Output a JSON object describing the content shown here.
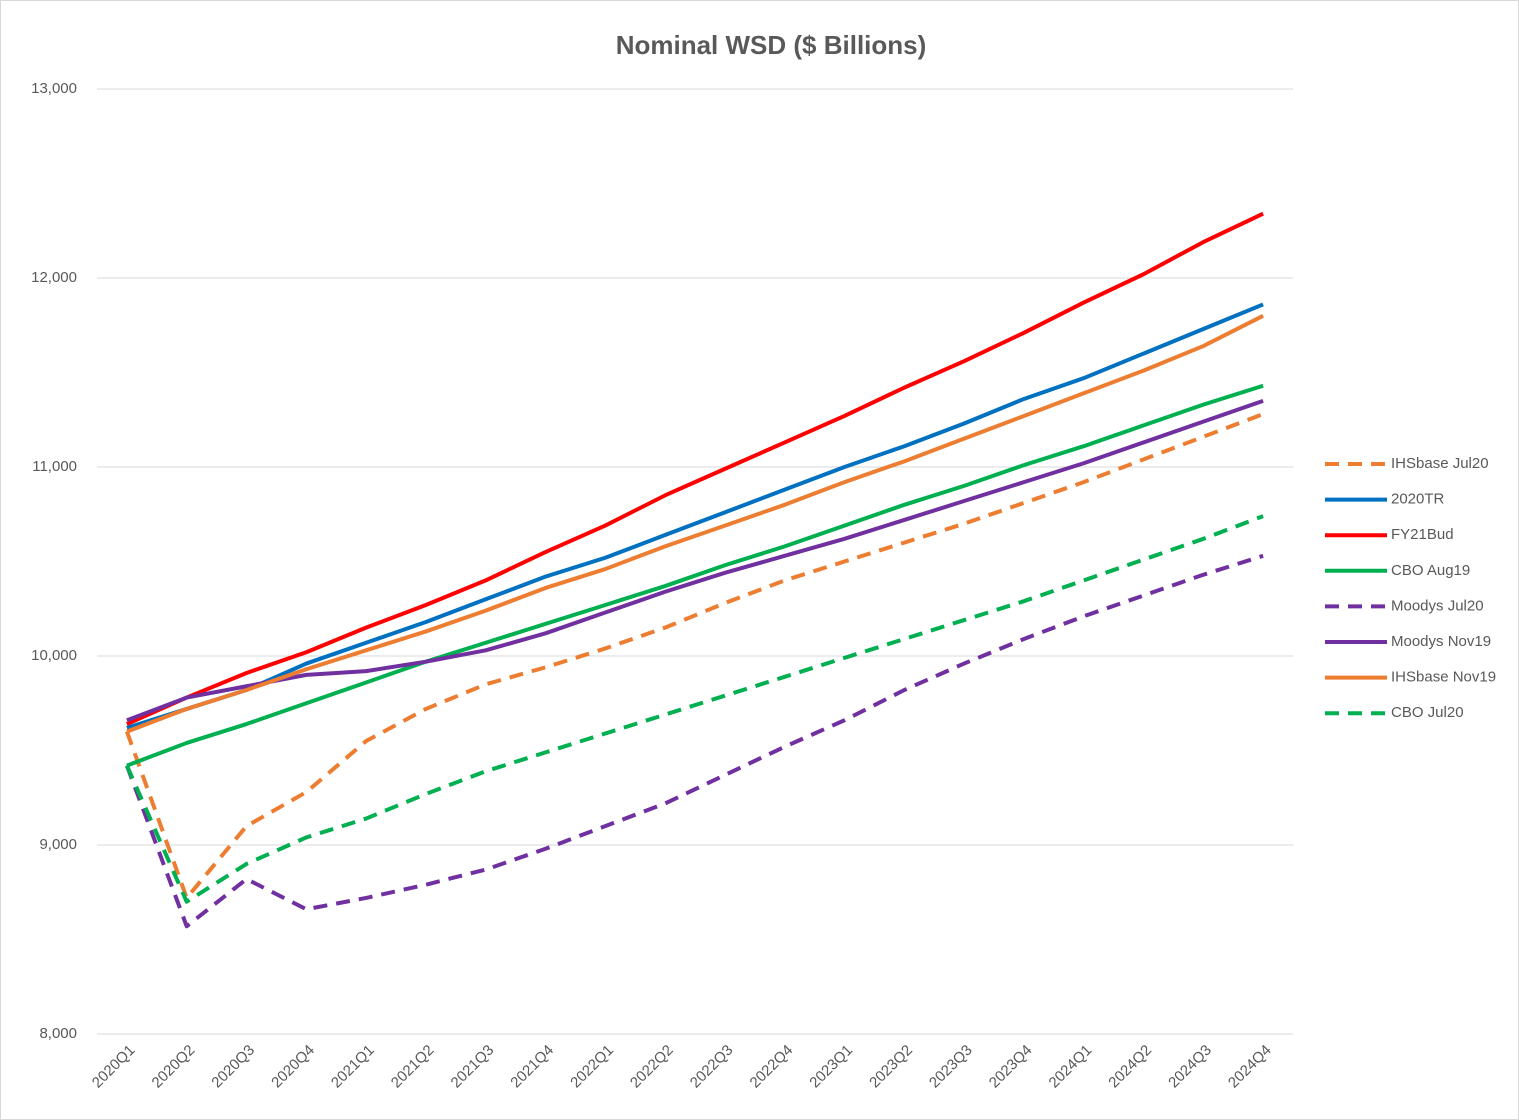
{
  "chart_data": {
    "type": "line",
    "title": "Nominal WSD ($ Billions)",
    "categories": [
      "2020Q1",
      "2020Q2",
      "2020Q3",
      "2020Q4",
      "2021Q1",
      "2021Q2",
      "2021Q3",
      "2021Q4",
      "2022Q1",
      "2022Q2",
      "2022Q3",
      "2022Q4",
      "2023Q1",
      "2023Q2",
      "2023Q3",
      "2023Q4",
      "2024Q1",
      "2024Q2",
      "2024Q3",
      "2024Q4"
    ],
    "series": [
      {
        "name": "IHSbase Jul20",
        "color": "#ED7D31",
        "dashed": true,
        "values": [
          9600,
          8720,
          9100,
          9280,
          9550,
          9720,
          9850,
          9940,
          10040,
          10150,
          10280,
          10400,
          10500,
          10600,
          10700,
          10810,
          10920,
          11040,
          11160,
          11280
        ]
      },
      {
        "name": "2020TR",
        "color": "#0070C0",
        "dashed": false,
        "values": [
          9620,
          9720,
          9820,
          9960,
          10070,
          10180,
          10300,
          10420,
          10520,
          10640,
          10760,
          10880,
          11000,
          11110,
          11230,
          11360,
          11470,
          11600,
          11730,
          11860
        ]
      },
      {
        "name": "FY21Bud",
        "color": "#FF0000",
        "dashed": false,
        "values": [
          9640,
          9780,
          9910,
          10020,
          10150,
          10270,
          10400,
          10550,
          10690,
          10850,
          10990,
          11130,
          11270,
          11420,
          11560,
          11710,
          11870,
          12020,
          12190,
          12340
        ]
      },
      {
        "name": "CBO Aug19",
        "color": "#00B050",
        "dashed": false,
        "values": [
          9420,
          9540,
          9640,
          9750,
          9860,
          9970,
          10070,
          10170,
          10270,
          10370,
          10480,
          10580,
          10690,
          10800,
          10900,
          11010,
          11110,
          11220,
          11330,
          11430
        ]
      },
      {
        "name": "Moodys Jul20",
        "color": "#7030A0",
        "dashed": true,
        "values": [
          9420,
          8570,
          8820,
          8660,
          8720,
          8790,
          8870,
          8980,
          9100,
          9220,
          9370,
          9520,
          9660,
          9820,
          9960,
          10090,
          10210,
          10320,
          10430,
          10530
        ]
      },
      {
        "name": "Moodys Nov19",
        "color": "#7030A0",
        "dashed": false,
        "values": [
          9660,
          9780,
          9840,
          9900,
          9920,
          9970,
          10030,
          10120,
          10230,
          10340,
          10440,
          10530,
          10620,
          10720,
          10820,
          10920,
          11020,
          11130,
          11240,
          11350
        ]
      },
      {
        "name": "IHSbase Nov19",
        "color": "#ED7D31",
        "dashed": false,
        "values": [
          9600,
          9720,
          9820,
          9930,
          10030,
          10130,
          10240,
          10360,
          10460,
          10580,
          10690,
          10800,
          10920,
          11030,
          11150,
          11270,
          11390,
          11510,
          11640,
          11800
        ]
      },
      {
        "name": "CBO Jul20",
        "color": "#00B050",
        "dashed": true,
        "values": [
          9420,
          8700,
          8900,
          9040,
          9140,
          9270,
          9390,
          9490,
          9590,
          9690,
          9790,
          9890,
          9990,
          10090,
          10190,
          10290,
          10400,
          10510,
          10620,
          10740
        ]
      }
    ],
    "ylim": [
      8000,
      13000
    ],
    "yticks": [
      {
        "value": 8000,
        "label": "8,000"
      },
      {
        "value": 9000,
        "label": "9,000"
      },
      {
        "value": 10000,
        "label": "10,000"
      },
      {
        "value": 11000,
        "label": "11,000"
      },
      {
        "value": 12000,
        "label": "12,000"
      },
      {
        "value": 13000,
        "label": "13,000"
      }
    ],
    "grid": true,
    "legend": "right"
  }
}
